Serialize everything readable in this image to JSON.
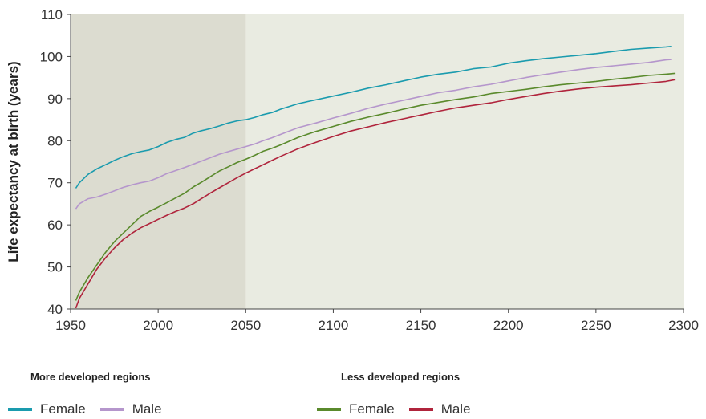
{
  "chart_data": {
    "type": "line",
    "title": "",
    "xlabel": "",
    "ylabel": "Life expectancy at birth (years)",
    "xlim": [
      1950,
      2300
    ],
    "ylim": [
      40,
      110
    ],
    "xticks": [
      "1950",
      "2000",
      "2050",
      "2100",
      "2150",
      "2200",
      "2250",
      "2300"
    ],
    "yticks": [
      "40",
      "50",
      "60",
      "70",
      "80",
      "90",
      "100",
      "110"
    ],
    "shaded_region": {
      "x_start": 1950,
      "x_end": 2050,
      "color": "#dcdcd0"
    },
    "plot_background": "#e9ebe1",
    "grid": false,
    "series": [
      {
        "name": "Female",
        "group": "More developed regions",
        "color": "#1a9bae",
        "x": [
          1953,
          1955,
          1960,
          1965,
          1970,
          1975,
          1980,
          1985,
          1990,
          1995,
          2000,
          2005,
          2010,
          2015,
          2020,
          2025,
          2030,
          2035,
          2040,
          2045,
          2050,
          2055,
          2060,
          2065,
          2070,
          2080,
          2090,
          2100,
          2110,
          2120,
          2130,
          2140,
          2150,
          2160,
          2170,
          2180,
          2190,
          2200,
          2210,
          2220,
          2230,
          2240,
          2250,
          2260,
          2270,
          2280,
          2290,
          2293
        ],
        "y": [
          68.7,
          70.0,
          72.0,
          73.3,
          74.3,
          75.3,
          76.2,
          76.9,
          77.4,
          77.8,
          78.6,
          79.6,
          80.3,
          80.8,
          81.8,
          82.4,
          82.9,
          83.5,
          84.2,
          84.7,
          85.0,
          85.5,
          86.2,
          86.7,
          87.5,
          88.8,
          89.7,
          90.6,
          91.5,
          92.5,
          93.3,
          94.2,
          95.1,
          95.8,
          96.3,
          97.1,
          97.5,
          98.4,
          99.0,
          99.5,
          99.9,
          100.3,
          100.7,
          101.2,
          101.7,
          102.0,
          102.3,
          102.4
        ]
      },
      {
        "name": "Male",
        "group": "More developed regions",
        "color": "#b596cc",
        "x": [
          1953,
          1955,
          1960,
          1965,
          1970,
          1975,
          1980,
          1985,
          1990,
          1995,
          2000,
          2005,
          2010,
          2015,
          2020,
          2025,
          2030,
          2035,
          2040,
          2045,
          2050,
          2055,
          2060,
          2065,
          2070,
          2080,
          2090,
          2100,
          2110,
          2120,
          2130,
          2140,
          2150,
          2160,
          2170,
          2180,
          2190,
          2200,
          2210,
          2220,
          2230,
          2240,
          2250,
          2260,
          2270,
          2280,
          2290,
          2293
        ],
        "y": [
          63.8,
          65.0,
          66.2,
          66.6,
          67.3,
          68.1,
          68.9,
          69.5,
          70.0,
          70.4,
          71.2,
          72.2,
          72.9,
          73.6,
          74.4,
          75.2,
          76.0,
          76.8,
          77.4,
          78.0,
          78.6,
          79.2,
          80.0,
          80.7,
          81.5,
          83.1,
          84.2,
          85.4,
          86.5,
          87.7,
          88.7,
          89.6,
          90.5,
          91.4,
          92.0,
          92.8,
          93.4,
          94.2,
          95.0,
          95.7,
          96.3,
          96.9,
          97.4,
          97.8,
          98.2,
          98.6,
          99.2,
          99.3
        ]
      },
      {
        "name": "Female",
        "group": "Less developed regions",
        "color": "#5a8a2c",
        "x": [
          1953,
          1955,
          1960,
          1965,
          1970,
          1975,
          1980,
          1985,
          1990,
          1995,
          2000,
          2005,
          2010,
          2015,
          2020,
          2025,
          2030,
          2035,
          2040,
          2045,
          2050,
          2055,
          2060,
          2065,
          2070,
          2080,
          2090,
          2100,
          2110,
          2120,
          2130,
          2140,
          2150,
          2160,
          2170,
          2180,
          2190,
          2200,
          2210,
          2220,
          2230,
          2240,
          2250,
          2260,
          2270,
          2280,
          2290,
          2295
        ],
        "y": [
          42.0,
          44.0,
          47.5,
          50.5,
          53.5,
          56.0,
          58.0,
          60.0,
          62.0,
          63.2,
          64.2,
          65.3,
          66.4,
          67.5,
          69.0,
          70.2,
          71.5,
          72.8,
          73.8,
          74.8,
          75.6,
          76.5,
          77.5,
          78.2,
          79.0,
          80.8,
          82.2,
          83.4,
          84.6,
          85.6,
          86.5,
          87.5,
          88.4,
          89.1,
          89.8,
          90.4,
          91.2,
          91.7,
          92.2,
          92.8,
          93.3,
          93.7,
          94.1,
          94.6,
          95.0,
          95.5,
          95.8,
          96.0
        ]
      },
      {
        "name": "Male",
        "group": "Less developed regions",
        "color": "#b0243c",
        "x": [
          1953,
          1955,
          1960,
          1965,
          1970,
          1975,
          1980,
          1985,
          1990,
          1995,
          2000,
          2005,
          2010,
          2015,
          2020,
          2025,
          2030,
          2035,
          2040,
          2045,
          2050,
          2055,
          2060,
          2065,
          2070,
          2080,
          2090,
          2100,
          2110,
          2120,
          2130,
          2140,
          2150,
          2160,
          2170,
          2180,
          2190,
          2200,
          2210,
          2220,
          2230,
          2240,
          2250,
          2260,
          2270,
          2280,
          2290,
          2295
        ],
        "y": [
          40.2,
          42.5,
          46.0,
          49.5,
          52.2,
          54.5,
          56.5,
          58.0,
          59.3,
          60.3,
          61.3,
          62.3,
          63.2,
          64.0,
          65.0,
          66.3,
          67.6,
          68.8,
          70.0,
          71.2,
          72.3,
          73.3,
          74.3,
          75.3,
          76.3,
          78.1,
          79.6,
          81.0,
          82.3,
          83.3,
          84.3,
          85.2,
          86.1,
          87.0,
          87.8,
          88.4,
          89.0,
          89.8,
          90.5,
          91.2,
          91.8,
          92.3,
          92.7,
          93.0,
          93.3,
          93.7,
          94.1,
          94.5
        ]
      }
    ]
  },
  "legend": {
    "groups": [
      {
        "title": "More developed regions",
        "items": [
          {
            "label": "Female",
            "color": "#1a9bae"
          },
          {
            "label": "Male",
            "color": "#b596cc"
          }
        ]
      },
      {
        "title": "Less developed regions",
        "items": [
          {
            "label": "Female",
            "color": "#5a8a2c"
          },
          {
            "label": "Male",
            "color": "#b0243c"
          }
        ]
      }
    ]
  }
}
